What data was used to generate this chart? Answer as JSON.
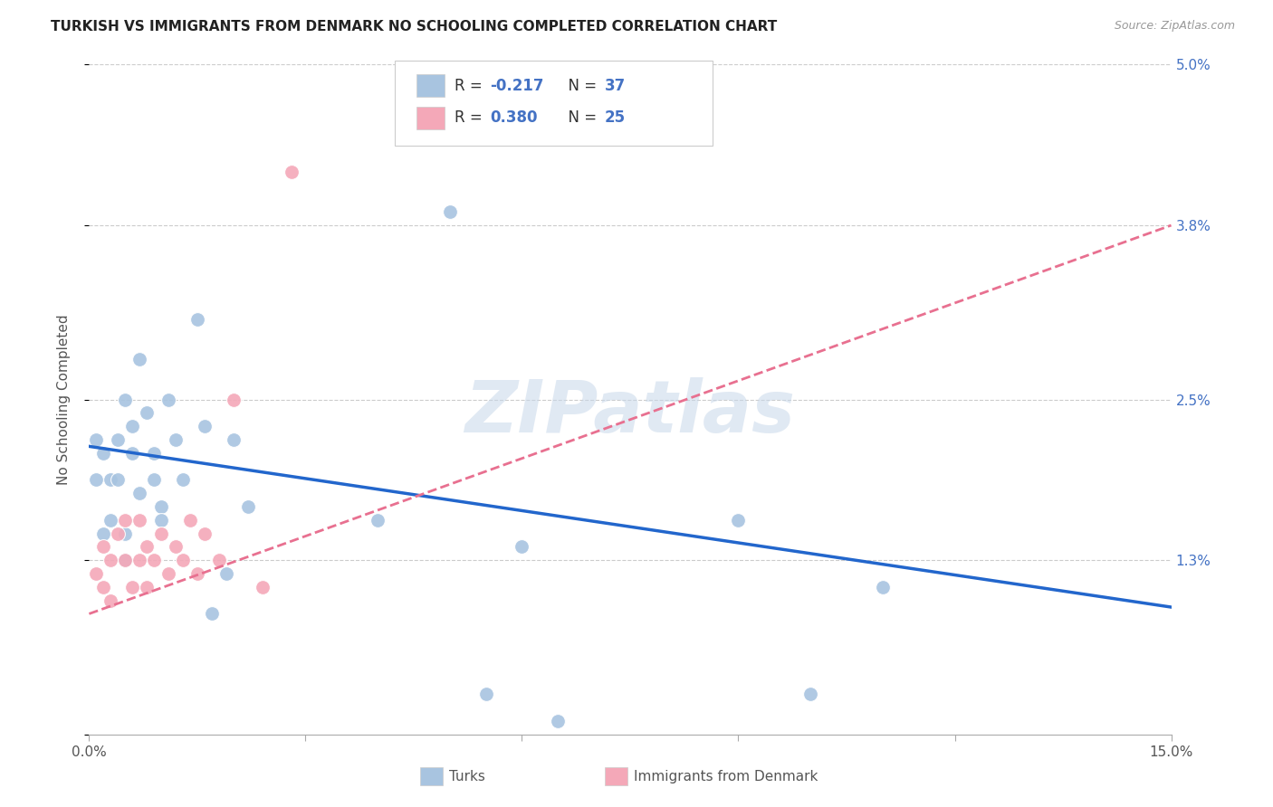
{
  "title": "TURKISH VS IMMIGRANTS FROM DENMARK NO SCHOOLING COMPLETED CORRELATION CHART",
  "source": "Source: ZipAtlas.com",
  "ylabel": "No Schooling Completed",
  "xlim": [
    0.0,
    0.15
  ],
  "ylim": [
    0.0,
    0.05
  ],
  "turks_R": -0.217,
  "turks_N": 37,
  "denmark_R": 0.38,
  "denmark_N": 25,
  "turks_color": "#a8c4e0",
  "denmark_color": "#f4a8b8",
  "turks_line_color": "#2266cc",
  "denmark_line_color": "#e87090",
  "watermark": "ZIPatlas",
  "blue_line_x": [
    0.0,
    0.15
  ],
  "blue_line_y": [
    0.0215,
    0.0095
  ],
  "pink_line_x": [
    0.0,
    0.15
  ],
  "pink_line_y": [
    0.009,
    0.038
  ],
  "turks_x": [
    0.001,
    0.001,
    0.002,
    0.002,
    0.003,
    0.003,
    0.004,
    0.004,
    0.005,
    0.005,
    0.005,
    0.006,
    0.006,
    0.007,
    0.007,
    0.008,
    0.009,
    0.009,
    0.01,
    0.01,
    0.011,
    0.012,
    0.013,
    0.015,
    0.016,
    0.017,
    0.019,
    0.02,
    0.022,
    0.04,
    0.05,
    0.055,
    0.06,
    0.065,
    0.09,
    0.1,
    0.11
  ],
  "turks_y": [
    0.022,
    0.019,
    0.021,
    0.015,
    0.019,
    0.016,
    0.022,
    0.019,
    0.015,
    0.013,
    0.025,
    0.023,
    0.021,
    0.028,
    0.018,
    0.024,
    0.021,
    0.019,
    0.017,
    0.016,
    0.025,
    0.022,
    0.019,
    0.031,
    0.023,
    0.009,
    0.012,
    0.022,
    0.017,
    0.016,
    0.039,
    0.003,
    0.014,
    0.001,
    0.016,
    0.003,
    0.011
  ],
  "denmark_x": [
    0.001,
    0.002,
    0.002,
    0.003,
    0.003,
    0.004,
    0.005,
    0.005,
    0.006,
    0.007,
    0.007,
    0.008,
    0.008,
    0.009,
    0.01,
    0.011,
    0.012,
    0.013,
    0.014,
    0.015,
    0.016,
    0.018,
    0.02,
    0.024,
    0.028
  ],
  "denmark_y": [
    0.012,
    0.014,
    0.011,
    0.01,
    0.013,
    0.015,
    0.013,
    0.016,
    0.011,
    0.013,
    0.016,
    0.011,
    0.014,
    0.013,
    0.015,
    0.012,
    0.014,
    0.013,
    0.016,
    0.012,
    0.015,
    0.013,
    0.025,
    0.011,
    0.042
  ]
}
